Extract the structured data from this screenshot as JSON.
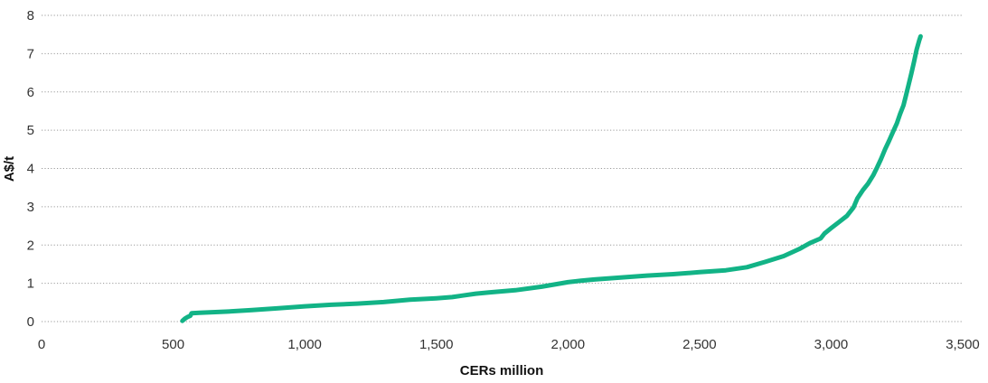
{
  "chart_data": {
    "type": "line",
    "title": "",
    "xlabel": "CERs million",
    "ylabel": "A$/t",
    "xlim": [
      0,
      3500
    ],
    "ylim": [
      0,
      8
    ],
    "xticks": [
      0,
      500,
      1000,
      1500,
      2000,
      2500,
      3000,
      3500
    ],
    "xtick_labels": [
      "0",
      "500",
      "1,000",
      "1,500",
      "2,000",
      "2,500",
      "3,000",
      "3,500"
    ],
    "yticks": [
      0,
      1,
      2,
      3,
      4,
      5,
      6,
      7,
      8
    ],
    "ytick_labels": [
      "0",
      "1",
      "2",
      "3",
      "4",
      "5",
      "6",
      "7",
      "8"
    ],
    "grid": "horizontal dotted",
    "series": [
      {
        "color": "#12b386",
        "points": [
          [
            535,
            0.02
          ],
          [
            545,
            0.08
          ],
          [
            555,
            0.12
          ],
          [
            565,
            0.15
          ],
          [
            570,
            0.22
          ],
          [
            600,
            0.23
          ],
          [
            700,
            0.26
          ],
          [
            800,
            0.3
          ],
          [
            900,
            0.35
          ],
          [
            1000,
            0.4
          ],
          [
            1100,
            0.44
          ],
          [
            1200,
            0.47
          ],
          [
            1300,
            0.51
          ],
          [
            1400,
            0.57
          ],
          [
            1500,
            0.61
          ],
          [
            1560,
            0.64
          ],
          [
            1600,
            0.68
          ],
          [
            1650,
            0.73
          ],
          [
            1700,
            0.76
          ],
          [
            1800,
            0.82
          ],
          [
            1900,
            0.91
          ],
          [
            2000,
            1.03
          ],
          [
            2050,
            1.07
          ],
          [
            2100,
            1.1
          ],
          [
            2200,
            1.15
          ],
          [
            2300,
            1.2
          ],
          [
            2400,
            1.24
          ],
          [
            2500,
            1.29
          ],
          [
            2600,
            1.34
          ],
          [
            2680,
            1.42
          ],
          [
            2750,
            1.56
          ],
          [
            2820,
            1.71
          ],
          [
            2880,
            1.9
          ],
          [
            2920,
            2.05
          ],
          [
            2960,
            2.17
          ],
          [
            2975,
            2.3
          ],
          [
            3000,
            2.44
          ],
          [
            3030,
            2.6
          ],
          [
            3060,
            2.76
          ],
          [
            3085,
            2.98
          ],
          [
            3100,
            3.22
          ],
          [
            3120,
            3.43
          ],
          [
            3140,
            3.6
          ],
          [
            3160,
            3.82
          ],
          [
            3175,
            4.03
          ],
          [
            3190,
            4.25
          ],
          [
            3205,
            4.5
          ],
          [
            3220,
            4.72
          ],
          [
            3235,
            4.95
          ],
          [
            3250,
            5.18
          ],
          [
            3262,
            5.42
          ],
          [
            3275,
            5.65
          ],
          [
            3285,
            5.92
          ],
          [
            3295,
            6.2
          ],
          [
            3305,
            6.48
          ],
          [
            3315,
            6.78
          ],
          [
            3325,
            7.1
          ],
          [
            3335,
            7.35
          ],
          [
            3340,
            7.45
          ]
        ]
      }
    ]
  }
}
